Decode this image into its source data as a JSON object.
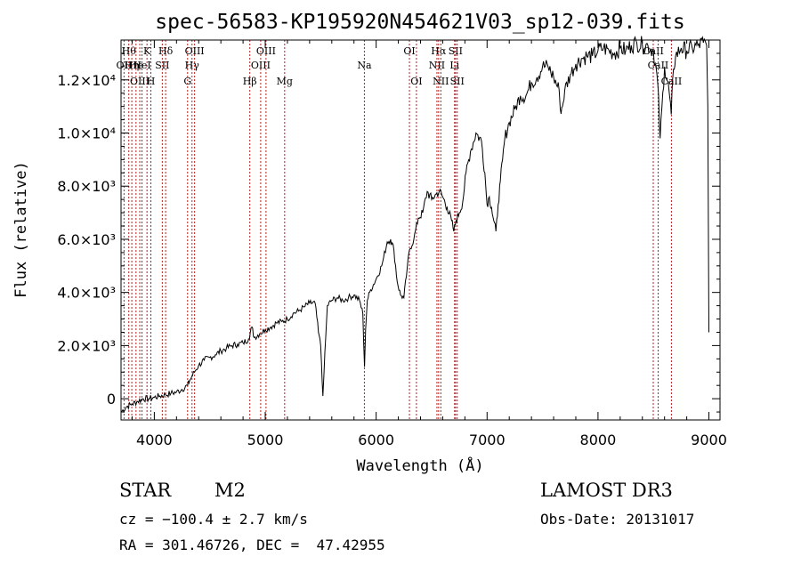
{
  "chart_data": {
    "type": "line",
    "title": "spec-56583-KP195920N454621V03_sp12-039.fits",
    "xlabel": "Wavelength (Å)",
    "ylabel": "Flux (relative)",
    "xlim": [
      3700,
      9100
    ],
    "ylim": [
      -800,
      13500
    ],
    "xticks": [
      4000,
      5000,
      6000,
      7000,
      8000,
      9000
    ],
    "xtick_labels": [
      "4000",
      "5000",
      "6000",
      "7000",
      "8000",
      "9000"
    ],
    "yticks": [
      0,
      2000,
      4000,
      6000,
      8000,
      10000,
      12000
    ],
    "ytick_labels": [
      "0",
      "2.0×10³",
      "4.0×10³",
      "6.0×10³",
      "8.0×10³",
      "1.0×10⁴",
      "1.2×10⁴"
    ],
    "series": [
      {
        "name": "spectrum",
        "x": [
          3700,
          3750,
          3800,
          3850,
          3900,
          3950,
          4000,
          4050,
          4100,
          4150,
          4200,
          4250,
          4300,
          4320,
          4360,
          4400,
          4450,
          4500,
          4550,
          4600,
          4650,
          4700,
          4750,
          4800,
          4850,
          4880,
          4900,
          4950,
          5000,
          5050,
          5100,
          5150,
          5200,
          5250,
          5300,
          5350,
          5400,
          5450,
          5480,
          5500,
          5520,
          5530,
          5560,
          5600,
          5650,
          5700,
          5750,
          5800,
          5850,
          5880,
          5895,
          5905,
          5920,
          5950,
          6000,
          6050,
          6100,
          6130,
          6160,
          6190,
          6220,
          6250,
          6280,
          6300,
          6340,
          6380,
          6420,
          6460,
          6500,
          6540,
          6570,
          6600,
          6640,
          6680,
          6700,
          6720,
          6750,
          6780,
          6810,
          6850,
          6900,
          6950,
          6980,
          7000,
          7020,
          7040,
          7060,
          7080,
          7100,
          7120,
          7140,
          7160,
          7200,
          7250,
          7300,
          7350,
          7400,
          7450,
          7500,
          7550,
          7600,
          7650,
          7660,
          7680,
          7700,
          7750,
          7800,
          7850,
          7900,
          7950,
          8000,
          8050,
          8100,
          8150,
          8200,
          8250,
          8300,
          8350,
          8400,
          8450,
          8500,
          8540,
          8560,
          8600,
          8640,
          8660,
          8680,
          8700,
          8750,
          8800,
          8850,
          8900,
          8950,
          8980,
          8990,
          9000
        ],
        "y": [
          -500,
          -300,
          -200,
          -100,
          0,
          0,
          50,
          100,
          150,
          200,
          250,
          350,
          500,
          700,
          1000,
          1250,
          1450,
          1550,
          1650,
          1800,
          1900,
          2000,
          2050,
          2100,
          2250,
          2700,
          2300,
          2450,
          2600,
          2700,
          2850,
          2900,
          3000,
          3200,
          3300,
          3450,
          3600,
          3600,
          2500,
          2000,
          100,
          1000,
          3500,
          3700,
          3800,
          3700,
          3800,
          3900,
          3700,
          3200,
          1200,
          2600,
          3700,
          4100,
          4500,
          5000,
          5900,
          6000,
          5600,
          4400,
          3900,
          3800,
          4900,
          5600,
          6000,
          6800,
          7000,
          7800,
          7500,
          7700,
          7800,
          7600,
          7200,
          6700,
          6300,
          6700,
          7000,
          7400,
          8500,
          9300,
          10000,
          9700,
          8500,
          7300,
          7600,
          7200,
          6700,
          6300,
          7300,
          8200,
          9000,
          9800,
          10400,
          10900,
          11400,
          11400,
          11900,
          12100,
          12500,
          12500,
          12100,
          11600,
          10900,
          11000,
          11600,
          12200,
          12600,
          12800,
          12900,
          12900,
          13100,
          13200,
          13100,
          13000,
          13200,
          13100,
          13300,
          13400,
          13300,
          13300,
          13100,
          11800,
          9800,
          12500,
          11600,
          10700,
          12400,
          12900,
          13200,
          13100,
          13200,
          13300,
          13400,
          13300,
          11000,
          2500
        ]
      }
    ],
    "line_markers": [
      {
        "wl": 3727,
        "label": "OII",
        "row": 2
      },
      {
        "wl": 3770,
        "label": "Hθ",
        "row": 1
      },
      {
        "wl": 3797,
        "label": "Hη",
        "row": 2
      },
      {
        "wl": 3835,
        "label": "He",
        "row": 2
      },
      {
        "wl": 3869,
        "label": "OIII",
        "row": 3
      },
      {
        "wl": 3889,
        "label": "HeI",
        "row": 2
      },
      {
        "wl": 3934,
        "label": "K",
        "row": 1
      },
      {
        "wl": 3969,
        "label": "H",
        "row": 3
      },
      {
        "wl": 4072,
        "label": "SII",
        "row": 2
      },
      {
        "wl": 4102,
        "label": "Hδ",
        "row": 1
      },
      {
        "wl": 4300,
        "label": "G",
        "row": 3
      },
      {
        "wl": 4340,
        "label": "Hγ",
        "row": 2
      },
      {
        "wl": 4363,
        "label": "OIII",
        "row": 1
      },
      {
        "wl": 4861,
        "label": "Hβ",
        "row": 3
      },
      {
        "wl": 4959,
        "label": "OIII",
        "row": 2
      },
      {
        "wl": 5007,
        "label": "OIII",
        "row": 1
      },
      {
        "wl": 5175,
        "label": "Mg",
        "row": 3
      },
      {
        "wl": 5894,
        "label": "Na",
        "row": 2
      },
      {
        "wl": 6300,
        "label": "OI",
        "row": 1
      },
      {
        "wl": 6363,
        "label": "OI",
        "row": 3
      },
      {
        "wl": 6548,
        "label": "NII",
        "row": 2
      },
      {
        "wl": 6563,
        "label": "Hα",
        "row": 1
      },
      {
        "wl": 6583,
        "label": "NII",
        "row": 3
      },
      {
        "wl": 6707,
        "label": "Li",
        "row": 2
      },
      {
        "wl": 6716,
        "label": "SII",
        "row": 1
      },
      {
        "wl": 6731,
        "label": "SII",
        "row": 3
      },
      {
        "wl": 8498,
        "label": "CaII",
        "row": 1
      },
      {
        "wl": 8542,
        "label": "CaII",
        "row": 2
      },
      {
        "wl": 8662,
        "label": "CaII",
        "row": 3
      }
    ]
  },
  "info": {
    "object_class": "STAR",
    "subclass": "M2",
    "survey": "LAMOST DR3",
    "cz": "cz = −100.4 ± 2.7 km/s",
    "obs_date": "Obs-Date: 20131017",
    "coords": "RA = 301.46726, DEC =  47.42955"
  },
  "colors": {
    "spectrum": "#000000",
    "marker": "#b22222",
    "axes": "#000000"
  }
}
